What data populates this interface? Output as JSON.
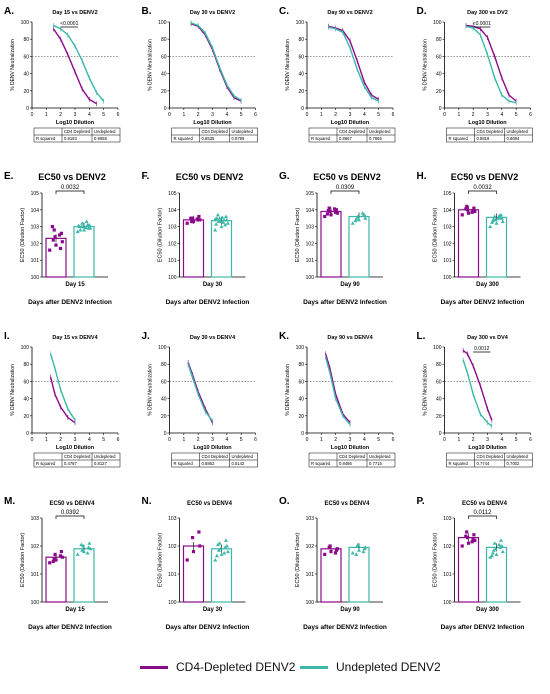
{
  "colors": {
    "depleted": "#8B0A8B",
    "undepleted": "#3CB8AA",
    "ref": "#555555"
  },
  "legend": {
    "depleted": "CD4-Depleted DENV2",
    "undepleted": "Undepleted DENV2"
  },
  "common": {
    "curve_ylabel": "% DENV Neutralization",
    "curve_xlabel": "Log10 Dilution",
    "table_row": "R squared",
    "table_col1": "CD4 Depleted",
    "table_col2": "Undepleted",
    "ec_ylabel": "EC50 (Dilution Factor)",
    "ec_xlabel_denv2": "Days after DENV2 Infection",
    "ec_xlabel_denv4": "Days after DENV2 Infection"
  },
  "chart_data": [
    {
      "id": "A",
      "type": "line",
      "title": "Day 15 vs DENV2",
      "x_ticks": [
        0,
        1,
        2,
        3,
        4,
        5,
        6
      ],
      "y_ticks": [
        0,
        20,
        40,
        60,
        80,
        100
      ],
      "ref_line": 60,
      "sig": "<0.0001",
      "r2": [
        "0.8193",
        "0.9058"
      ],
      "series": [
        {
          "name": "CD4 Depleted",
          "x": [
            1.5,
            2.0,
            2.5,
            3.0,
            3.5,
            4.0,
            4.5
          ],
          "y": [
            92,
            80,
            62,
            42,
            22,
            10,
            5
          ]
        },
        {
          "name": "Undepleted",
          "x": [
            1.5,
            2.0,
            2.5,
            3.0,
            3.5,
            4.0,
            4.5,
            5.0
          ],
          "y": [
            96,
            92,
            85,
            72,
            55,
            35,
            18,
            8
          ]
        }
      ]
    },
    {
      "id": "B",
      "type": "line",
      "title": "Day 30 vs DENV2",
      "x_ticks": [
        0,
        1,
        2,
        3,
        4,
        5,
        6
      ],
      "y_ticks": [
        0,
        20,
        40,
        60,
        80,
        100
      ],
      "ref_line": 60,
      "sig": "",
      "r2": [
        "0.8535",
        "0.8799"
      ],
      "series": [
        {
          "name": "CD4 Depleted",
          "x": [
            1.5,
            2.0,
            2.5,
            3.0,
            3.5,
            4.0,
            4.5,
            5.0
          ],
          "y": [
            98,
            95,
            85,
            68,
            45,
            25,
            12,
            8
          ]
        },
        {
          "name": "Undepleted",
          "x": [
            1.5,
            2.0,
            2.5,
            3.0,
            3.5,
            4.0,
            4.5,
            5.0
          ],
          "y": [
            99,
            96,
            87,
            70,
            47,
            27,
            14,
            9
          ]
        }
      ]
    },
    {
      "id": "C",
      "type": "line",
      "title": "Day 90 vs DENV2",
      "x_ticks": [
        0,
        1,
        2,
        3,
        4,
        5,
        6
      ],
      "y_ticks": [
        0,
        20,
        40,
        60,
        80,
        100
      ],
      "ref_line": 60,
      "sig": "",
      "r2": [
        "0.8667",
        "0.7865"
      ],
      "series": [
        {
          "name": "CD4 Depleted",
          "x": [
            1.5,
            2.0,
            2.5,
            3.0,
            3.5,
            4.0,
            4.5,
            5.0
          ],
          "y": [
            95,
            93,
            90,
            78,
            55,
            30,
            15,
            10
          ]
        },
        {
          "name": "Undepleted",
          "x": [
            1.5,
            2.0,
            2.5,
            3.0,
            3.5,
            4.0,
            4.5,
            5.0
          ],
          "y": [
            94,
            92,
            88,
            70,
            45,
            25,
            12,
            8
          ]
        }
      ]
    },
    {
      "id": "D",
      "type": "line",
      "title": "Day 300 vs DV2",
      "x_ticks": [
        0,
        1,
        2,
        3,
        4,
        5,
        6
      ],
      "y_ticks": [
        0,
        20,
        40,
        60,
        80,
        100
      ],
      "ref_line": 60,
      "sig": "<0.0001",
      "r2": [
        "0.8819",
        "0.8694"
      ],
      "series": [
        {
          "name": "CD4 Depleted",
          "x": [
            1.5,
            2.0,
            2.5,
            3.0,
            3.5,
            4.0,
            4.5,
            5.0
          ],
          "y": [
            96,
            95,
            92,
            82,
            60,
            35,
            15,
            8
          ]
        },
        {
          "name": "Undepleted",
          "x": [
            1.5,
            2.0,
            2.5,
            3.0,
            3.5,
            4.0,
            4.5,
            5.0
          ],
          "y": [
            95,
            93,
            85,
            62,
            35,
            15,
            8,
            6
          ]
        }
      ]
    },
    {
      "id": "E",
      "type": "scatter",
      "title": "EC50 vs DENV2",
      "x_label": "Day 15",
      "y_ticks_exp": [
        0,
        1,
        2,
        3,
        4,
        5
      ],
      "sig": "0.0032",
      "bars": [
        2.3,
        3.0
      ],
      "points": [
        [
          1.6,
          1.9,
          2.1,
          2.4,
          2.6,
          2.8,
          1.7,
          2.2,
          2.5,
          3.0
        ],
        [
          2.7,
          2.8,
          2.9,
          3.0,
          3.1,
          3.2,
          2.9,
          3.0,
          3.1,
          2.8,
          3.3,
          3.0,
          2.95,
          3.05
        ]
      ]
    },
    {
      "id": "F",
      "type": "scatter",
      "title": "EC50 vs DENV2",
      "x_label": "Day 30",
      "y_ticks_exp": [
        0,
        1,
        2,
        3,
        4,
        5
      ],
      "sig": "",
      "bars": [
        3.4,
        3.35
      ],
      "points": [
        [
          3.2,
          3.3,
          3.4,
          3.5,
          3.6,
          3.3,
          3.4,
          3.5,
          3.45
        ],
        [
          2.8,
          3.0,
          3.2,
          3.3,
          3.4,
          3.5,
          3.6,
          3.3,
          3.1,
          3.7,
          3.4,
          3.5,
          3.25,
          3.15,
          3.55,
          3.45
        ]
      ]
    },
    {
      "id": "G",
      "type": "scatter",
      "title": "EC50 vs DENV2",
      "x_label": "Day 90",
      "y_ticks_exp": [
        0,
        1,
        2,
        3,
        4,
        5
      ],
      "sig": "0.0309",
      "bars": [
        3.9,
        3.6
      ],
      "points": [
        [
          3.6,
          3.7,
          3.8,
          3.9,
          4.0,
          4.1,
          3.85,
          3.95,
          4.05,
          3.75
        ],
        [
          3.2,
          3.4,
          3.5,
          3.6,
          3.7,
          3.55,
          3.65,
          3.45,
          3.8,
          3.35
        ]
      ]
    },
    {
      "id": "H",
      "type": "scatter",
      "title": "EC50 vs DENV2",
      "x_label": "Day 300",
      "y_ticks_exp": [
        0,
        1,
        2,
        3,
        4,
        5
      ],
      "sig": "0.0032",
      "bars": [
        4.0,
        3.55
      ],
      "points": [
        [
          3.7,
          3.8,
          3.9,
          4.0,
          4.1,
          4.2,
          3.95,
          4.05,
          3.85
        ],
        [
          3.0,
          3.2,
          3.3,
          3.4,
          3.5,
          3.6,
          3.7,
          3.45,
          3.55,
          3.35,
          3.65,
          3.25,
          3.5
        ]
      ]
    },
    {
      "id": "I",
      "type": "line",
      "title": "Day 15 vs DENV4",
      "x_ticks": [
        0,
        1,
        2,
        3,
        4,
        5,
        6
      ],
      "y_ticks": [
        0,
        20,
        40,
        60,
        80,
        100
      ],
      "ref_line": 60,
      "sig": "",
      "r2": [
        "0.4787",
        "0.8127"
      ],
      "series": [
        {
          "name": "CD4 Depleted",
          "x": [
            1.3,
            1.6,
            2.0,
            2.5,
            3.0
          ],
          "y": [
            65,
            45,
            30,
            18,
            12
          ]
        },
        {
          "name": "Undepleted",
          "x": [
            1.3,
            1.6,
            2.0,
            2.5,
            3.0
          ],
          "y": [
            92,
            75,
            50,
            28,
            15
          ]
        }
      ]
    },
    {
      "id": "J",
      "type": "line",
      "title": "Day 30 vs DENV4",
      "x_ticks": [
        0,
        1,
        2,
        3,
        4,
        5,
        6
      ],
      "y_ticks": [
        0,
        20,
        40,
        60,
        80,
        100
      ],
      "ref_line": 60,
      "sig": "",
      "r2": [
        "0.8862",
        "0.8142"
      ],
      "series": [
        {
          "name": "CD4 Depleted",
          "x": [
            1.3,
            1.6,
            2.0,
            2.5,
            3.0
          ],
          "y": [
            82,
            68,
            48,
            28,
            12
          ]
        },
        {
          "name": "Undepleted",
          "x": [
            1.3,
            1.6,
            2.0,
            2.5,
            3.0
          ],
          "y": [
            80,
            65,
            45,
            25,
            14
          ]
        }
      ]
    },
    {
      "id": "K",
      "type": "line",
      "title": "Day 90 vs DENV4",
      "x_ticks": [
        0,
        1,
        2,
        3,
        4,
        5,
        6
      ],
      "y_ticks": [
        0,
        20,
        40,
        60,
        80,
        100
      ],
      "ref_line": 60,
      "sig": "",
      "r2": [
        "0.8486",
        "0.7715"
      ],
      "series": [
        {
          "name": "CD4 Depleted",
          "x": [
            1.3,
            1.6,
            2.0,
            2.5,
            3.0
          ],
          "y": [
            92,
            75,
            45,
            22,
            12
          ]
        },
        {
          "name": "Undepleted",
          "x": [
            1.3,
            1.6,
            2.0,
            2.5,
            3.0
          ],
          "y": [
            88,
            70,
            40,
            20,
            10
          ]
        }
      ]
    },
    {
      "id": "L",
      "type": "line",
      "title": "Day 300 vs DV4",
      "x_ticks": [
        0,
        1,
        2,
        3,
        4,
        5,
        6
      ],
      "y_ticks": [
        0,
        20,
        40,
        60,
        80,
        100
      ],
      "ref_line": 60,
      "sig": "0.0012",
      "r2": [
        "0.7744",
        "0.7002"
      ],
      "series": [
        {
          "name": "CD4 Depleted",
          "x": [
            1.3,
            1.6,
            2.0,
            2.5,
            3.0,
            3.3
          ],
          "y": [
            96,
            92,
            78,
            55,
            28,
            15
          ]
        },
        {
          "name": "Undepleted",
          "x": [
            1.3,
            1.6,
            2.0,
            2.5,
            3.0,
            3.3
          ],
          "y": [
            85,
            70,
            45,
            22,
            12,
            8
          ]
        }
      ]
    },
    {
      "id": "M",
      "type": "scatter",
      "title": "EC50 vs DENV4",
      "x_label": "Day 15",
      "y_ticks_exp": [
        0,
        1,
        2,
        3
      ],
      "sig": "0.0392",
      "bars": [
        1.6,
        1.9
      ],
      "points": [
        [
          1.4,
          1.5,
          1.6,
          1.7,
          1.8,
          1.55,
          1.65,
          1.45
        ],
        [
          1.7,
          1.8,
          1.9,
          2.0,
          2.1,
          1.85,
          1.95,
          2.05,
          1.75
        ]
      ]
    },
    {
      "id": "N",
      "type": "scatter",
      "title": "EC50 vs DENV4",
      "x_label": "Day 30",
      "y_ticks_exp": [
        0,
        1,
        2,
        3
      ],
      "sig": "",
      "bars": [
        2.0,
        1.9
      ],
      "points": [
        [
          1.5,
          1.8,
          2.0,
          2.3,
          2.5
        ],
        [
          1.5,
          1.7,
          1.8,
          1.9,
          2.0,
          2.1,
          2.2,
          1.85,
          1.95,
          2.05,
          1.75,
          1.65
        ]
      ]
    },
    {
      "id": "O",
      "type": "scatter",
      "title": "EC50 vs DENV4",
      "x_label": "Day 90",
      "y_ticks_exp": [
        0,
        1,
        2,
        3
      ],
      "sig": "",
      "bars": [
        1.9,
        1.95
      ],
      "points": [
        [
          1.7,
          1.8,
          1.9,
          2.0,
          1.85,
          1.95,
          1.75
        ],
        [
          1.75,
          1.85,
          1.95,
          2.05,
          1.9,
          2.0,
          1.8,
          1.7
        ]
      ]
    },
    {
      "id": "P",
      "type": "scatter",
      "title": "EC50 vs DENV4",
      "x_label": "Day 300",
      "y_ticks_exp": [
        0,
        1,
        2,
        3
      ],
      "sig": "0.0112",
      "bars": [
        2.3,
        1.95
      ],
      "points": [
        [
          2.0,
          2.1,
          2.2,
          2.3,
          2.4,
          2.5,
          2.25,
          2.35,
          2.15
        ],
        [
          1.6,
          1.7,
          1.8,
          1.9,
          2.0,
          2.1,
          2.2,
          1.85,
          1.95,
          1.75,
          2.05,
          1.65
        ]
      ]
    }
  ]
}
